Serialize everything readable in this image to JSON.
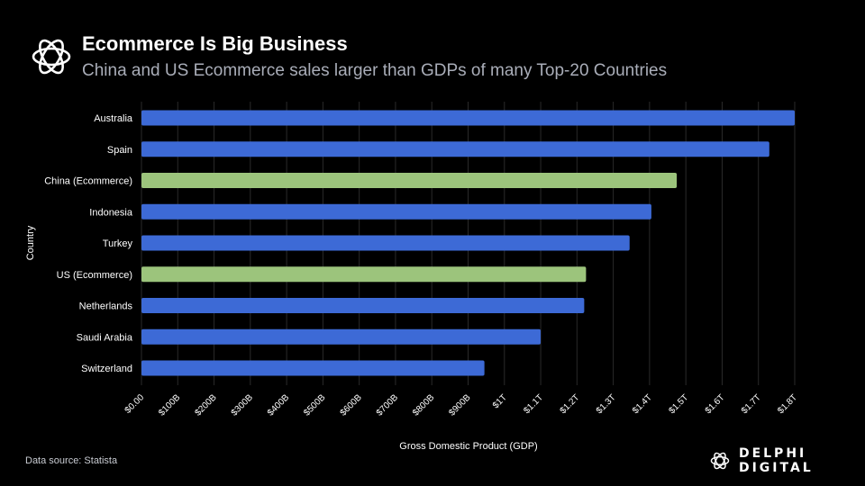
{
  "header": {
    "title": "Ecommerce Is Big Business",
    "subtitle": "China and US Ecommerce sales larger than GDPs of many Top-20 Countries",
    "logo_icon": "delphi-flower-icon"
  },
  "footer": {
    "source": "Data source: Statista",
    "brand": "DELPHI DIGITAL"
  },
  "colors": {
    "background": "#000000",
    "country_bar": "#3d6ad6",
    "ecommerce_bar": "#9cc47c",
    "gridline": "#2a2a2a",
    "text": "#ffffff"
  },
  "chart_data": {
    "type": "bar",
    "orientation": "horizontal",
    "xlabel": "Gross Domestic Product (GDP)",
    "ylabel": "Country",
    "xlim": [
      0,
      1800
    ],
    "x_unit": "billion USD",
    "grid": true,
    "x_ticks": [
      {
        "value": 0,
        "label": "$0.00"
      },
      {
        "value": 100,
        "label": "$100B"
      },
      {
        "value": 200,
        "label": "$200B"
      },
      {
        "value": 300,
        "label": "$300B"
      },
      {
        "value": 400,
        "label": "$400B"
      },
      {
        "value": 500,
        "label": "$500B"
      },
      {
        "value": 600,
        "label": "$600B"
      },
      {
        "value": 700,
        "label": "$700B"
      },
      {
        "value": 800,
        "label": "$800B"
      },
      {
        "value": 900,
        "label": "$900B"
      },
      {
        "value": 1000,
        "label": "$1T"
      },
      {
        "value": 1100,
        "label": "$1.1T"
      },
      {
        "value": 1200,
        "label": "$1.2T"
      },
      {
        "value": 1300,
        "label": "$1.3T"
      },
      {
        "value": 1400,
        "label": "$1.4T"
      },
      {
        "value": 1500,
        "label": "$1.5T"
      },
      {
        "value": 1600,
        "label": "$1.6T"
      },
      {
        "value": 1700,
        "label": "$1.7T"
      },
      {
        "value": 1800,
        "label": "$1.8T"
      }
    ],
    "categories": [
      "Australia",
      "Spain",
      "China (Ecommerce)",
      "Indonesia",
      "Turkey",
      "US (Ecommerce)",
      "Netherlands",
      "Saudi Arabia",
      "Switzerland"
    ],
    "values": [
      1800,
      1730,
      1475,
      1405,
      1345,
      1225,
      1220,
      1100,
      945
    ],
    "highlight": [
      false,
      false,
      true,
      false,
      false,
      true,
      false,
      false,
      false
    ]
  }
}
